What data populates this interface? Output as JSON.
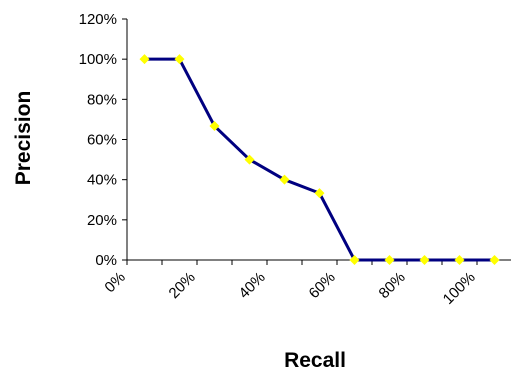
{
  "chart_data": {
    "type": "line",
    "title": "",
    "xlabel": "Recall",
    "ylabel": "Precision",
    "x_ticks": [
      "0%",
      "20%",
      "40%",
      "60%",
      "80%",
      "100%"
    ],
    "y_ticks": [
      "0%",
      "20%",
      "40%",
      "60%",
      "80%",
      "100%",
      "120%"
    ],
    "xlim": [
      0,
      1.1
    ],
    "ylim": [
      0,
      1.2
    ],
    "grid": false,
    "legend": "none",
    "series": [
      {
        "color": "#000080",
        "marker_color": "#ffff00",
        "points": [
          {
            "x": 0.05,
            "y": 1.0
          },
          {
            "x": 0.15,
            "y": 1.0
          },
          {
            "x": 0.25,
            "y": 0.667
          },
          {
            "x": 0.35,
            "y": 0.5
          },
          {
            "x": 0.45,
            "y": 0.4
          },
          {
            "x": 0.55,
            "y": 0.333
          },
          {
            "x": 0.65,
            "y": 0.0
          },
          {
            "x": 0.75,
            "y": 0.0
          },
          {
            "x": 0.85,
            "y": 0.0
          },
          {
            "x": 0.95,
            "y": 0.0
          },
          {
            "x": 1.05,
            "y": 0.0
          }
        ]
      }
    ]
  }
}
